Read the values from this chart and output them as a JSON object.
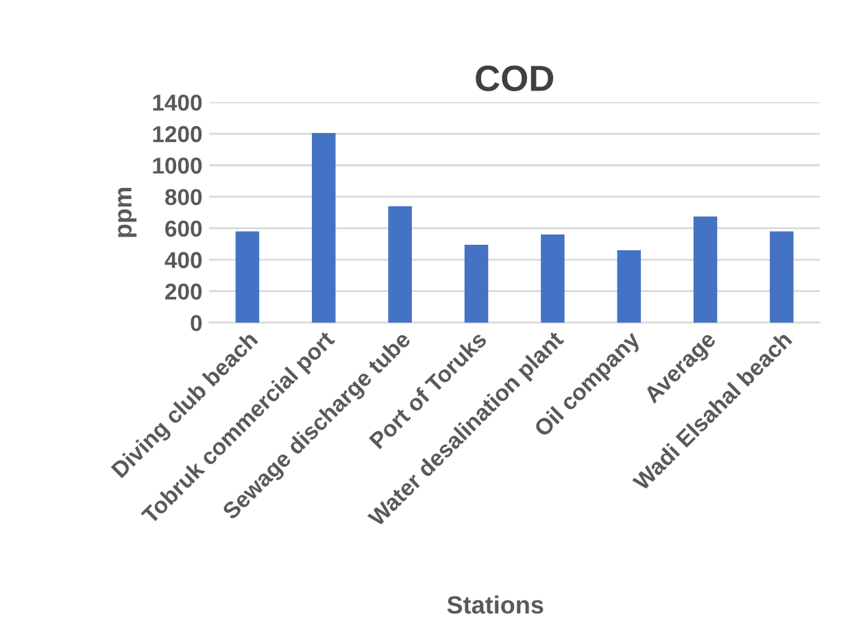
{
  "chart_data": {
    "type": "bar",
    "title": "COD",
    "xlabel": "Stations",
    "ylabel": "ppm",
    "categories": [
      "Diving club beach",
      "Tobruk commercial port",
      "Sewage discharge tube",
      "Port of Toruks",
      "Water desalination plant",
      "Oil company",
      "Average",
      "Wadi Elsahal beach"
    ],
    "values": [
      580,
      1205,
      740,
      495,
      560,
      460,
      675,
      580
    ],
    "color": "#4472c4",
    "ylim": [
      0,
      1400
    ],
    "yticks": [
      0,
      200,
      400,
      600,
      800,
      1000,
      1200,
      1400
    ],
    "grid": "y"
  }
}
